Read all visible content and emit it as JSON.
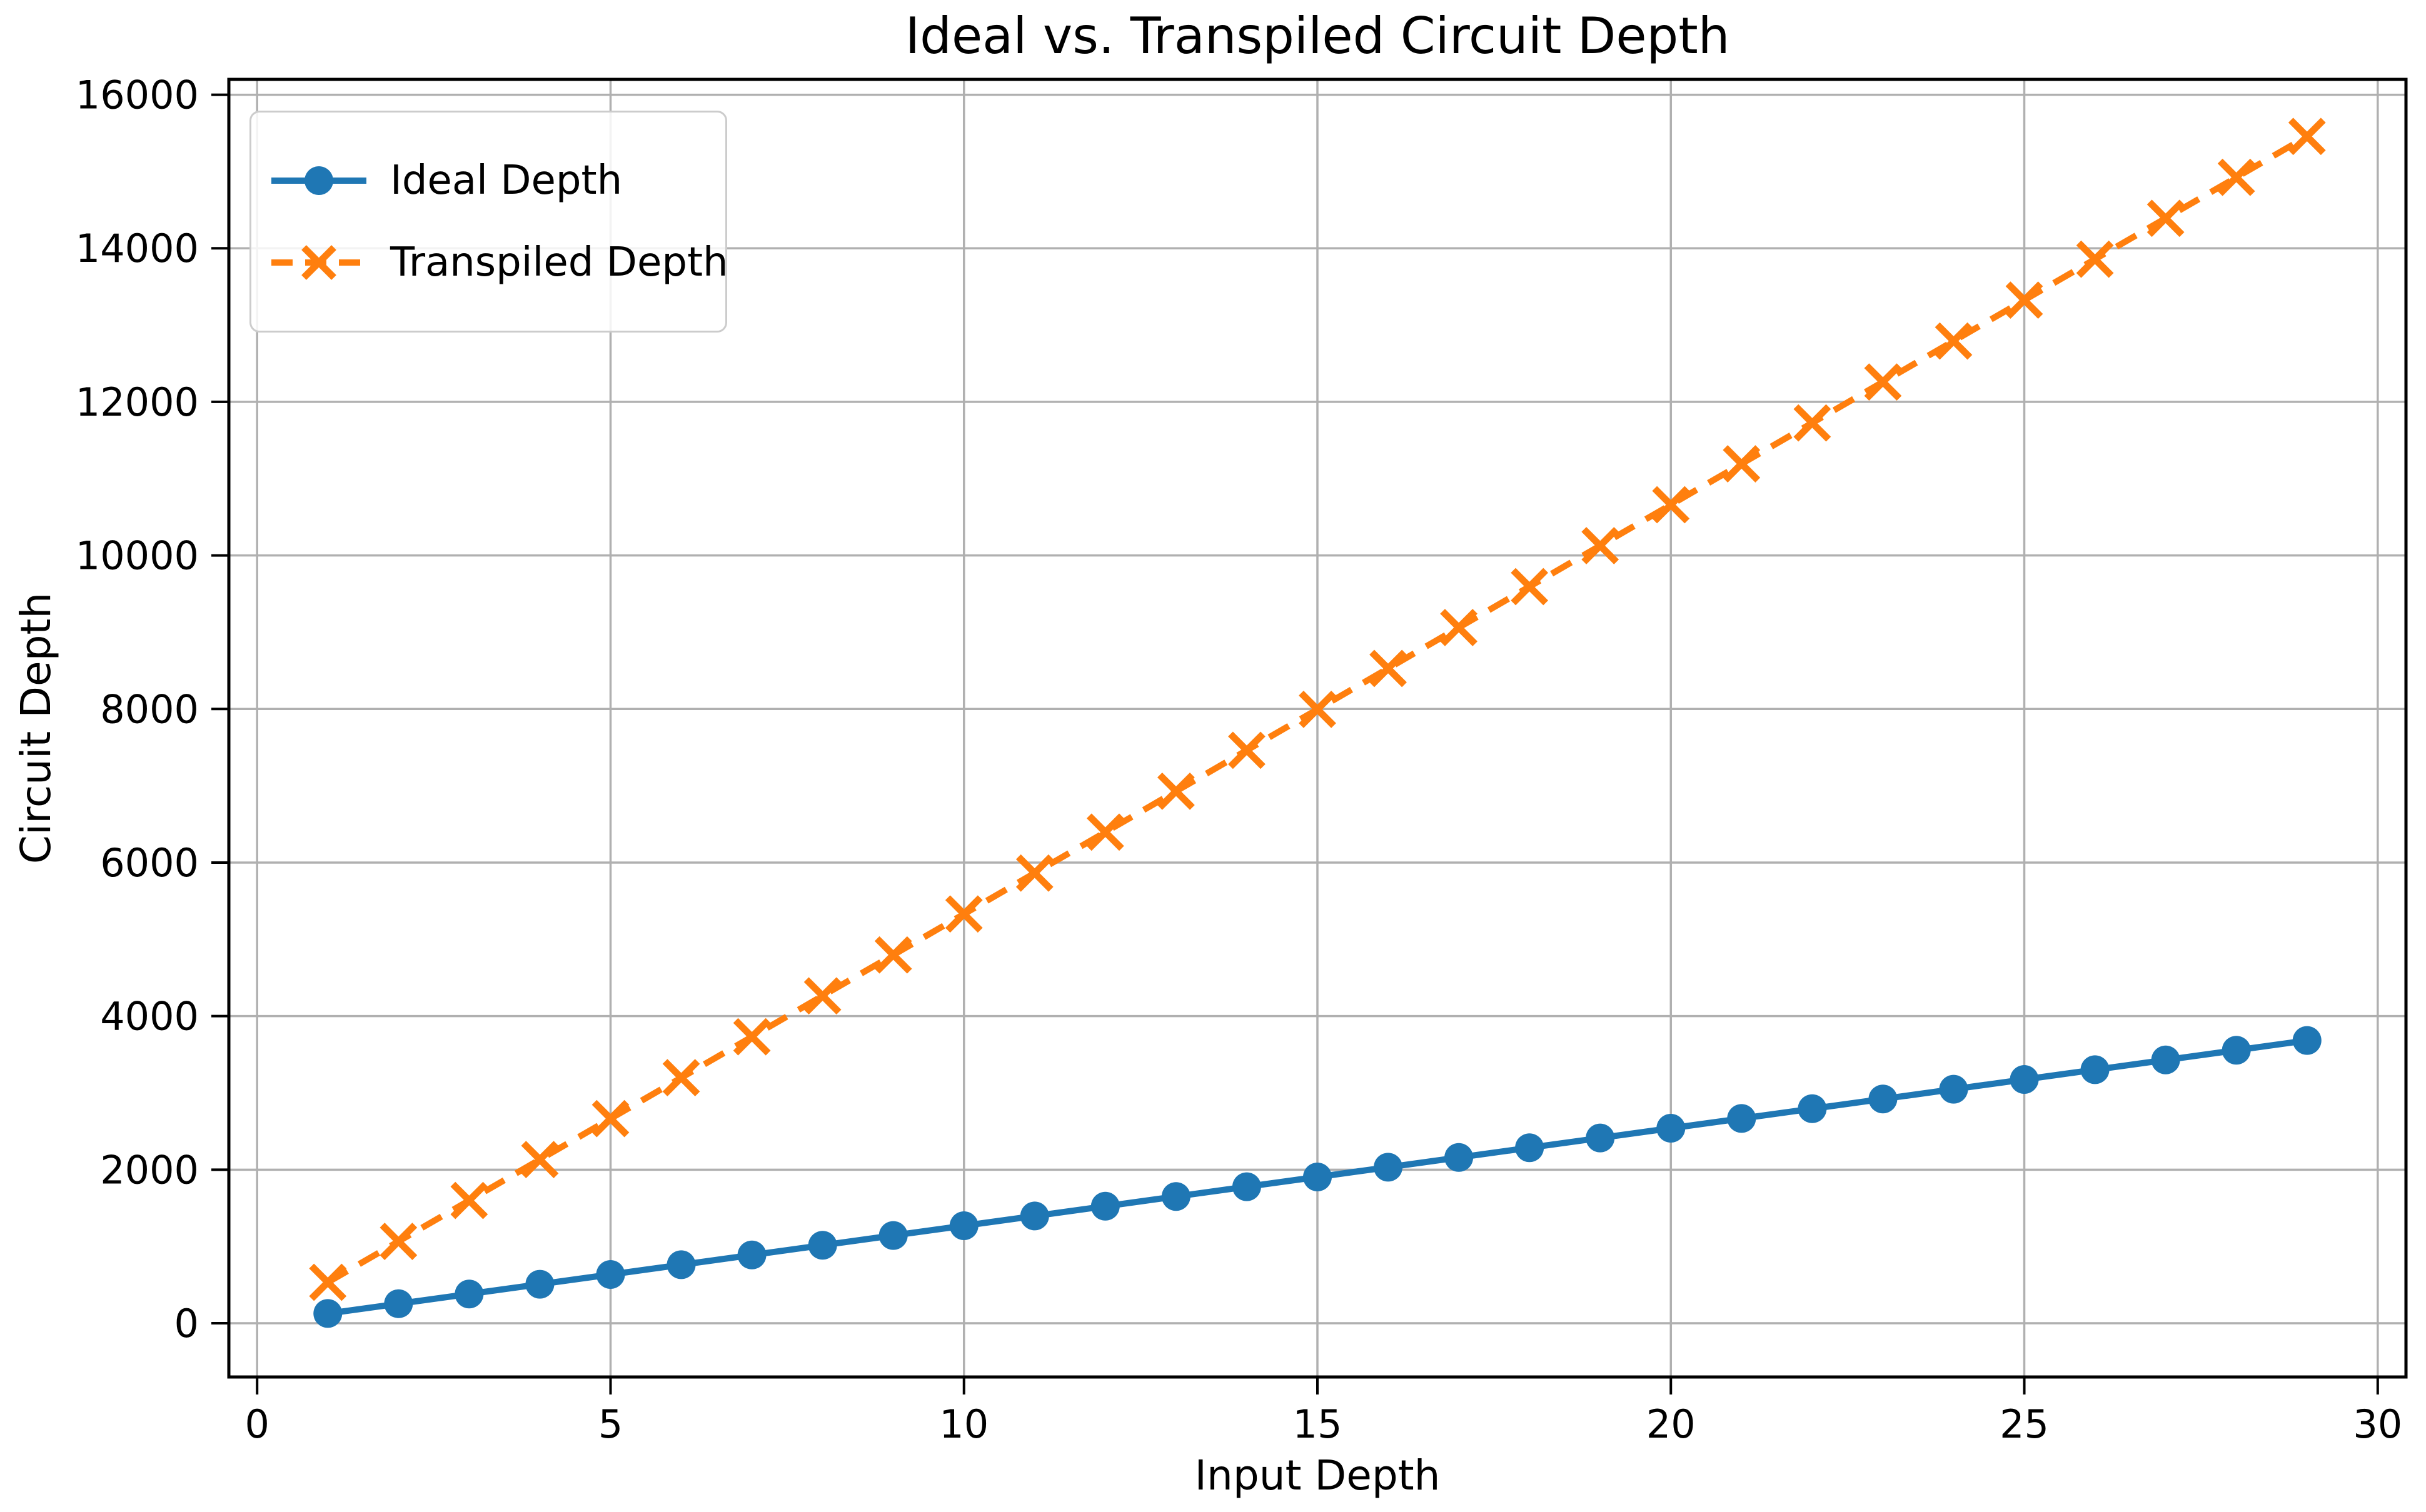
{
  "figure": {
    "background": "#ffffff"
  },
  "chart_data": {
    "type": "line",
    "title": "Ideal vs. Transpiled Circuit Depth",
    "xlabel": "Input Depth",
    "ylabel": "Circuit Depth",
    "xlim": [
      -0.4,
      30.4
    ],
    "ylim": [
      -700,
      16200
    ],
    "xticks": [
      0,
      5,
      10,
      15,
      20,
      25,
      30
    ],
    "yticks": [
      0,
      2000,
      4000,
      6000,
      8000,
      10000,
      12000,
      14000,
      16000
    ],
    "grid": true,
    "legend_position": "upper-left",
    "x": [
      1,
      2,
      3,
      4,
      5,
      6,
      7,
      8,
      9,
      10,
      11,
      12,
      13,
      14,
      15,
      16,
      17,
      18,
      19,
      20,
      21,
      22,
      23,
      24,
      25,
      26,
      27,
      28,
      29
    ],
    "series": [
      {
        "name": "Ideal Depth",
        "color": "#1f77b4",
        "marker": "circle",
        "linestyle": "solid",
        "values": [
          127,
          254,
          381,
          508,
          635,
          762,
          889,
          1016,
          1143,
          1270,
          1397,
          1524,
          1651,
          1778,
          1905,
          2032,
          2159,
          2286,
          2413,
          2540,
          2667,
          2794,
          2921,
          3048,
          3175,
          3302,
          3429,
          3556,
          3683
        ]
      },
      {
        "name": "Transpiled Depth",
        "color": "#ff7f0e",
        "marker": "x",
        "linestyle": "dashed",
        "values": [
          533,
          1066,
          1599,
          2132,
          2665,
          3198,
          3731,
          4264,
          4797,
          5330,
          5863,
          6396,
          6929,
          7462,
          7995,
          8528,
          9061,
          9594,
          10127,
          10660,
          11193,
          11726,
          12259,
          12792,
          13325,
          13858,
          14391,
          14924,
          15457
        ]
      }
    ]
  },
  "colors": {
    "grid": "#b0b0b0",
    "spine": "#000000",
    "text": "#000000",
    "legend_border": "#cccccc"
  }
}
